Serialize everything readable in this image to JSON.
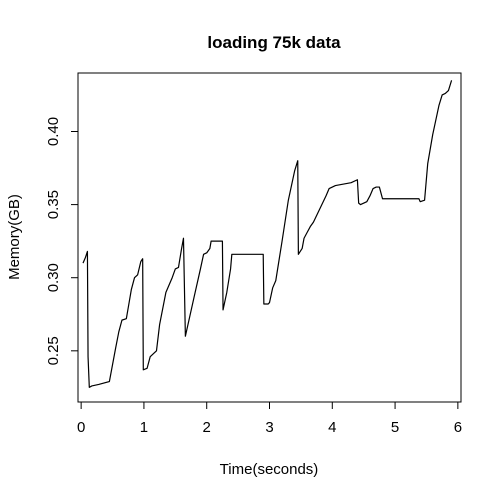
{
  "chart_data": {
    "type": "line",
    "title": "loading 75k data",
    "xlabel": "Time(seconds)",
    "ylabel": "Memory(GB)",
    "xlim": [
      -0.05,
      6.05
    ],
    "ylim": [
      0.215,
      0.44
    ],
    "xticks": [
      0,
      1,
      2,
      3,
      4,
      5,
      6
    ],
    "xtick_labels": [
      "0",
      "1",
      "2",
      "3",
      "4",
      "5",
      "6"
    ],
    "yticks": [
      0.25,
      0.3,
      0.35,
      0.4
    ],
    "ytick_labels": [
      "0.25",
      "0.30",
      "0.35",
      "0.40"
    ],
    "grid": false,
    "series": [
      {
        "color": "#000000",
        "x": [
          0.03,
          0.07,
          0.1,
          0.11,
          0.13,
          0.17,
          0.28,
          0.45,
          0.55,
          0.6,
          0.65,
          0.72,
          0.8,
          0.85,
          0.9,
          0.95,
          0.98,
          0.99,
          1.05,
          1.1,
          1.2,
          1.25,
          1.35,
          1.45,
          1.5,
          1.55,
          1.6,
          1.63,
          1.66,
          1.8,
          1.9,
          1.95,
          2.0,
          2.05,
          2.07,
          2.1,
          2.25,
          2.26,
          2.32,
          2.38,
          2.4,
          2.9,
          2.91,
          2.98,
          3.0,
          3.05,
          3.1,
          3.2,
          3.3,
          3.4,
          3.45,
          3.46,
          3.52,
          3.55,
          3.6,
          3.65,
          3.7,
          3.8,
          3.9,
          3.95,
          4.0,
          4.05,
          4.3,
          4.4,
          4.42,
          4.45,
          4.55,
          4.6,
          4.65,
          4.7,
          4.75,
          4.8,
          4.81,
          5.0,
          5.38,
          5.4,
          5.47,
          5.52,
          5.6,
          5.7,
          5.75,
          5.8,
          5.85,
          5.9
        ],
        "y": [
          0.31,
          0.314,
          0.318,
          0.246,
          0.225,
          0.226,
          0.227,
          0.229,
          0.252,
          0.263,
          0.271,
          0.272,
          0.292,
          0.3,
          0.302,
          0.311,
          0.313,
          0.237,
          0.238,
          0.246,
          0.25,
          0.268,
          0.29,
          0.3,
          0.306,
          0.307,
          0.32,
          0.327,
          0.26,
          0.287,
          0.306,
          0.316,
          0.317,
          0.32,
          0.325,
          0.325,
          0.325,
          0.278,
          0.29,
          0.306,
          0.316,
          0.316,
          0.282,
          0.282,
          0.283,
          0.293,
          0.298,
          0.325,
          0.353,
          0.373,
          0.38,
          0.316,
          0.32,
          0.327,
          0.331,
          0.335,
          0.338,
          0.347,
          0.356,
          0.361,
          0.362,
          0.363,
          0.365,
          0.367,
          0.351,
          0.35,
          0.352,
          0.356,
          0.361,
          0.362,
          0.362,
          0.354,
          0.354,
          0.354,
          0.354,
          0.352,
          0.353,
          0.378,
          0.398,
          0.418,
          0.425,
          0.426,
          0.428,
          0.435
        ]
      }
    ]
  }
}
